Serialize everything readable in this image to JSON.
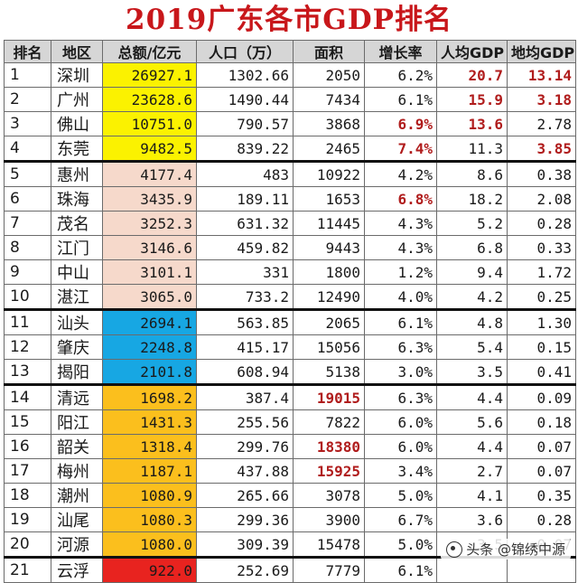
{
  "title": "2019广东各市GDP排名",
  "headers": [
    "排名",
    "地区",
    "总额/亿元",
    "人口（万）",
    "面积",
    "增长率",
    "人均GDP",
    "地均GDP"
  ],
  "colors": {
    "yellow": "#fbf200",
    "peach": "#f6d9cb",
    "blue": "#17a7e3",
    "orange": "#fbbf1d",
    "red": "#e8231f",
    "highlight_text": "#b01c1c",
    "title": "#c8171b"
  },
  "rows": [
    {
      "rank": "1",
      "city": "深圳",
      "total": "26927.1",
      "pop": "1302.66",
      "area": "2050",
      "growth": "6.2%",
      "per_cap": "20.7",
      "per_area": "13.14",
      "band": "yellow",
      "hl": [
        "per_cap",
        "per_area"
      ]
    },
    {
      "rank": "2",
      "city": "广州",
      "total": "23628.6",
      "pop": "1490.44",
      "area": "7434",
      "growth": "6.1%",
      "per_cap": "15.9",
      "per_area": "3.18",
      "band": "yellow",
      "hl": [
        "per_cap",
        "per_area"
      ]
    },
    {
      "rank": "3",
      "city": "佛山",
      "total": "10751.0",
      "pop": "790.57",
      "area": "3868",
      "growth": "6.9%",
      "per_cap": "13.6",
      "per_area": "2.78",
      "band": "yellow",
      "hl": [
        "growth",
        "per_cap"
      ]
    },
    {
      "rank": "4",
      "city": "东莞",
      "total": "9482.5",
      "pop": "839.22",
      "area": "2465",
      "growth": "7.4%",
      "per_cap": "11.3",
      "per_area": "3.85",
      "band": "yellow",
      "hl": [
        "growth",
        "per_area"
      ],
      "sep": true
    },
    {
      "rank": "5",
      "city": "惠州",
      "total": "4177.4",
      "pop": "483",
      "area": "10922",
      "growth": "4.2%",
      "per_cap": "8.6",
      "per_area": "0.38",
      "band": "peach",
      "hl": []
    },
    {
      "rank": "6",
      "city": "珠海",
      "total": "3435.9",
      "pop": "189.11",
      "area": "1653",
      "growth": "6.8%",
      "per_cap": "18.2",
      "per_area": "2.08",
      "band": "peach",
      "hl": [
        "growth"
      ]
    },
    {
      "rank": "7",
      "city": "茂名",
      "total": "3252.3",
      "pop": "631.32",
      "area": "11445",
      "growth": "4.3%",
      "per_cap": "5.2",
      "per_area": "0.28",
      "band": "peach",
      "hl": []
    },
    {
      "rank": "8",
      "city": "江门",
      "total": "3146.6",
      "pop": "459.82",
      "area": "9443",
      "growth": "4.3%",
      "per_cap": "6.8",
      "per_area": "0.33",
      "band": "peach",
      "hl": []
    },
    {
      "rank": "9",
      "city": "中山",
      "total": "3101.1",
      "pop": "331",
      "area": "1800",
      "growth": "1.2%",
      "per_cap": "9.4",
      "per_area": "1.72",
      "band": "peach",
      "hl": []
    },
    {
      "rank": "10",
      "city": "湛江",
      "total": "3065.0",
      "pop": "733.2",
      "area": "12490",
      "growth": "4.0%",
      "per_cap": "4.2",
      "per_area": "0.25",
      "band": "peach",
      "hl": [],
      "sep": true
    },
    {
      "rank": "11",
      "city": "汕头",
      "total": "2694.1",
      "pop": "563.85",
      "area": "2065",
      "growth": "6.1%",
      "per_cap": "4.8",
      "per_area": "1.30",
      "band": "blue",
      "hl": []
    },
    {
      "rank": "12",
      "city": "肇庆",
      "total": "2248.8",
      "pop": "415.17",
      "area": "15056",
      "growth": "6.3%",
      "per_cap": "5.4",
      "per_area": "0.15",
      "band": "blue",
      "hl": []
    },
    {
      "rank": "13",
      "city": "揭阳",
      "total": "2101.8",
      "pop": "608.94",
      "area": "5138",
      "growth": "3.0%",
      "per_cap": "3.5",
      "per_area": "0.41",
      "band": "blue",
      "hl": [],
      "sep": true
    },
    {
      "rank": "14",
      "city": "清远",
      "total": "1698.2",
      "pop": "387.4",
      "area": "19015",
      "growth": "6.3%",
      "per_cap": "4.4",
      "per_area": "0.09",
      "band": "orange",
      "hl": [
        "area"
      ]
    },
    {
      "rank": "15",
      "city": "阳江",
      "total": "1431.3",
      "pop": "255.56",
      "area": "7822",
      "growth": "6.0%",
      "per_cap": "5.6",
      "per_area": "0.18",
      "band": "orange",
      "hl": []
    },
    {
      "rank": "16",
      "city": "韶关",
      "total": "1318.4",
      "pop": "299.76",
      "area": "18380",
      "growth": "6.0%",
      "per_cap": "4.4",
      "per_area": "0.07",
      "band": "orange",
      "hl": [
        "area"
      ]
    },
    {
      "rank": "17",
      "city": "梅州",
      "total": "1187.1",
      "pop": "437.88",
      "area": "15925",
      "growth": "3.4%",
      "per_cap": "2.7",
      "per_area": "0.07",
      "band": "orange",
      "hl": [
        "area"
      ]
    },
    {
      "rank": "18",
      "city": "潮州",
      "total": "1080.9",
      "pop": "265.66",
      "area": "3078",
      "growth": "5.0%",
      "per_cap": "4.1",
      "per_area": "0.35",
      "band": "orange",
      "hl": []
    },
    {
      "rank": "19",
      "city": "汕尾",
      "total": "1080.3",
      "pop": "299.36",
      "area": "3900",
      "growth": "6.7%",
      "per_cap": "3.6",
      "per_area": "0.28",
      "band": "orange",
      "hl": []
    },
    {
      "rank": "20",
      "city": "河源",
      "total": "1080.0",
      "pop": "309.39",
      "area": "15478",
      "growth": "5.0%",
      "per_cap": "3.5",
      "per_area": "0.07",
      "band": "orange",
      "hl": [],
      "sep": true
    },
    {
      "rank": "21",
      "city": "云浮",
      "total": "922.0",
      "pop": "252.69",
      "area": "7779",
      "growth": "6.1%",
      "per_cap": "",
      "per_area": "",
      "band": "red",
      "hl": []
    }
  ],
  "watermark": {
    "text": "头条 @锦绣中源",
    "icon": "camera-icon"
  }
}
